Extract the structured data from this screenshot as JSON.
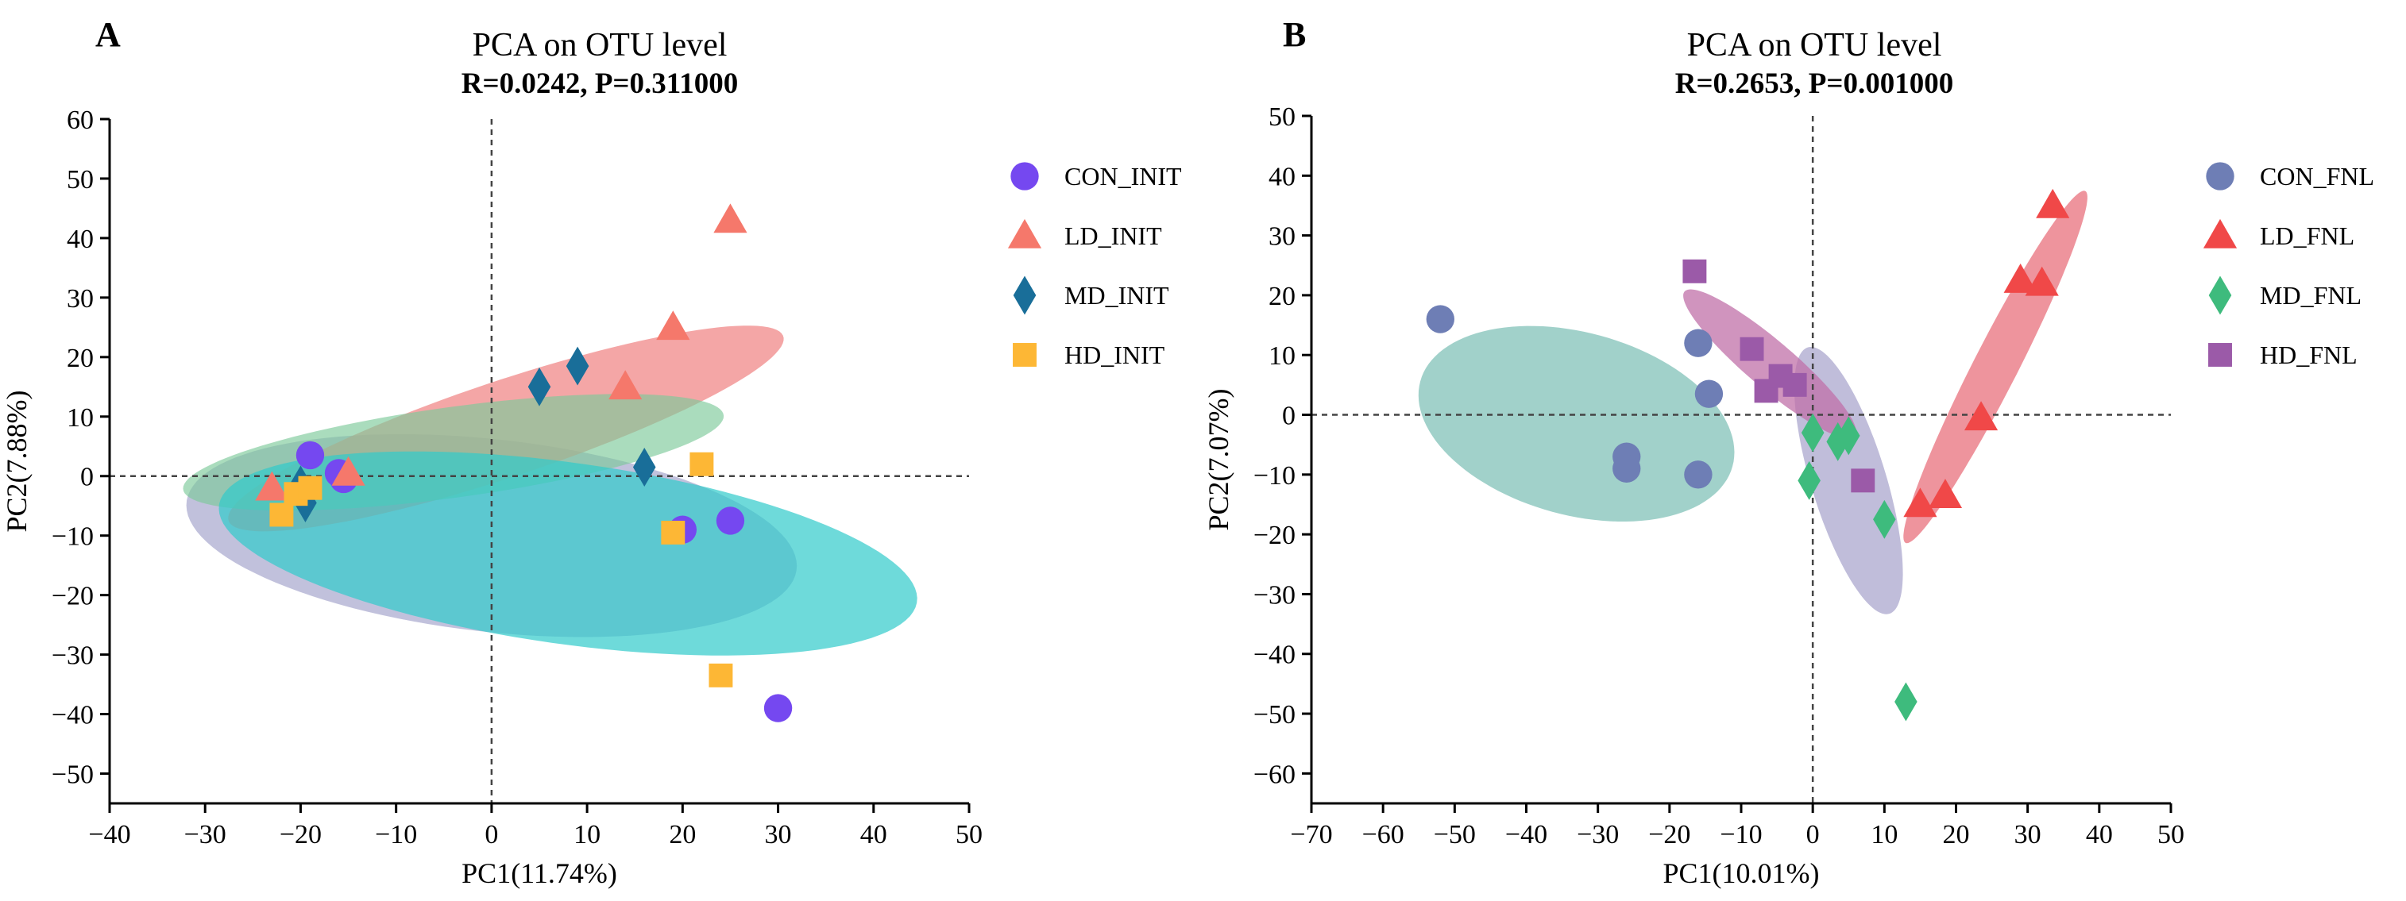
{
  "chart_data": [
    {
      "type": "scatter",
      "panel": "A",
      "title": "PCA on OTU level",
      "subtitle": "R=0.0242, P=0.311000",
      "xlabel": "PC1(11.74%)",
      "ylabel": "PC2(7.88%)",
      "xlim": [
        -40,
        50
      ],
      "ylim": [
        -55,
        60
      ],
      "xticks": [
        -40,
        -30,
        -20,
        -10,
        0,
        10,
        20,
        30,
        40,
        50
      ],
      "yticks": [
        -50,
        -40,
        -30,
        -20,
        -10,
        0,
        10,
        20,
        30,
        40,
        50,
        60
      ],
      "reference_lines": {
        "x": 0,
        "y": 0
      },
      "legend_position": "right",
      "series": [
        {
          "name": "CON_INIT",
          "marker": "circle",
          "color": "#7548F0",
          "points": [
            [
              -19,
              3.5
            ],
            [
              -16,
              0.5
            ],
            [
              -15.5,
              -0.5
            ],
            [
              20,
              -9
            ],
            [
              25,
              -7.5
            ],
            [
              30,
              -39
            ]
          ],
          "ellipse": {
            "color": "#8E8EC0",
            "opacity": 0.55,
            "cx": 0,
            "cy": -10,
            "rx": 32.5,
            "ry": 16,
            "angle_deg": -12
          }
        },
        {
          "name": "LD_INIT",
          "marker": "triangle",
          "color": "#F5786B",
          "points": [
            [
              -23,
              -2
            ],
            [
              -15,
              0.5
            ],
            [
              14,
              15
            ],
            [
              19,
              25
            ],
            [
              25,
              43
            ]
          ],
          "ellipse": {
            "color": "#F08080",
            "opacity": 0.7,
            "cx": 1.5,
            "cy": 8,
            "rx": 33,
            "ry": 7.5,
            "angle_deg": 29
          }
        },
        {
          "name": "MD_INIT",
          "marker": "diamond",
          "color": "#196E99",
          "points": [
            [
              -20,
              -1.5
            ],
            [
              -19.5,
              -4.5
            ],
            [
              5,
              15
            ],
            [
              9,
              18.5
            ],
            [
              16,
              1.5
            ]
          ],
          "ellipse": {
            "color": "#7CC99A",
            "opacity": 0.65,
            "cx": -4,
            "cy": 4,
            "rx": 29,
            "ry": 7.5,
            "angle_deg": 13
          }
        },
        {
          "name": "HD_INIT",
          "marker": "square",
          "color": "#FDB735",
          "points": [
            [
              -22,
              -6.5
            ],
            [
              -20.5,
              -3
            ],
            [
              -19,
              -2
            ],
            [
              19,
              -9.5
            ],
            [
              22,
              2
            ],
            [
              24,
              -33.5
            ]
          ],
          "ellipse": {
            "color": "#30CACA",
            "opacity": 0.7,
            "cx": 8,
            "cy": -13,
            "rx": 37.5,
            "ry": 15,
            "angle_deg": -14
          }
        }
      ]
    },
    {
      "type": "scatter",
      "panel": "B",
      "title": "PCA on OTU level",
      "subtitle": "R=0.2653, P=0.001000",
      "xlabel": "PC1(10.01%)",
      "ylabel": "PC2(7.07%)",
      "xlim": [
        -70,
        50
      ],
      "ylim": [
        -65,
        50
      ],
      "xticks": [
        -70,
        -60,
        -50,
        -40,
        -30,
        -20,
        -10,
        0,
        10,
        20,
        30,
        40,
        50
      ],
      "yticks": [
        -60,
        -50,
        -40,
        -30,
        -20,
        -10,
        0,
        10,
        20,
        30,
        40,
        50
      ],
      "reference_lines": {
        "x": 0,
        "y": 0
      },
      "legend_position": "right",
      "series": [
        {
          "name": "CON_FNL",
          "marker": "circle",
          "color": "#6E7EB5",
          "points": [
            [
              -52,
              16
            ],
            [
              -16,
              12
            ],
            [
              -14.5,
              3.5
            ],
            [
              -26,
              -7
            ],
            [
              -26,
              -9
            ],
            [
              -16,
              -10
            ]
          ],
          "ellipse": {
            "color": "#6FB8AE",
            "opacity": 0.65,
            "cx": -33,
            "cy": -1.5,
            "rx": 23,
            "ry": 15,
            "angle_deg": -22
          }
        },
        {
          "name": "LD_FNL",
          "marker": "triangle",
          "color": "#F04848",
          "points": [
            [
              15,
              -15
            ],
            [
              18.5,
              -13.5
            ],
            [
              23.5,
              -0.5
            ],
            [
              29,
              22.5
            ],
            [
              32,
              22
            ],
            [
              33.5,
              35
            ]
          ],
          "ellipse": {
            "color": "#E8707C",
            "opacity": 0.75,
            "cx": 25.5,
            "cy": 8,
            "rx": 32,
            "ry": 3.2,
            "angle_deg": 67
          }
        },
        {
          "name": "MD_FNL",
          "marker": "diamond",
          "color": "#3EBB7D",
          "points": [
            [
              0,
              -3
            ],
            [
              -0.5,
              -11
            ],
            [
              3.5,
              -4.5
            ],
            [
              5,
              -3.5
            ],
            [
              10,
              -17.5
            ],
            [
              13,
              -48
            ]
          ],
          "ellipse": {
            "color": "#B5B1D4",
            "opacity": 0.85,
            "cx": 5,
            "cy": -11,
            "rx": 23,
            "ry": 5.3,
            "angle_deg": -76
          }
        },
        {
          "name": "HD_FNL",
          "marker": "square",
          "color": "#9B5AA8",
          "points": [
            [
              -16.5,
              24
            ],
            [
              -8.5,
              11
            ],
            [
              -6.5,
              4
            ],
            [
              -4.5,
              6.5
            ],
            [
              -2.5,
              5
            ],
            [
              7,
              -11
            ]
          ],
          "ellipse": {
            "color": "#C070A8",
            "opacity": 0.75,
            "cx": -6,
            "cy": 8.5,
            "rx": 17,
            "ry": 3.6,
            "angle_deg": -46
          }
        }
      ]
    }
  ]
}
